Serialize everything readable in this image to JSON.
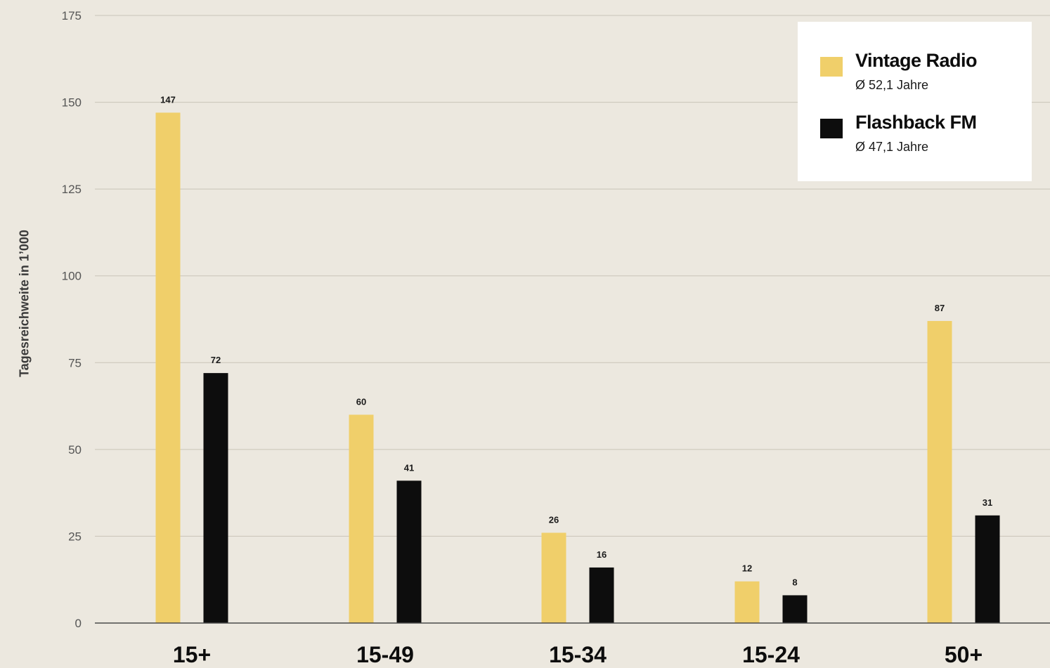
{
  "chart_data": {
    "type": "bar",
    "ylabel": "Tagesreichweite in 1’000",
    "ylim": [
      0,
      175
    ],
    "yticks": [
      0,
      25,
      50,
      75,
      100,
      125,
      150,
      175
    ],
    "grid": true,
    "legend_position": "top-right",
    "categories": [
      "15+",
      "15-49",
      "15-34",
      "15-24",
      "50+"
    ],
    "series": [
      {
        "name": "Vintage Radio",
        "subtitle": "Ø 52,1 Jahre",
        "color": "#f0cf6a",
        "values": [
          147,
          60,
          26,
          12,
          87
        ]
      },
      {
        "name": "Flashback FM",
        "subtitle": "Ø 47,1 Jahre",
        "color": "#0d0d0d",
        "values": [
          72,
          41,
          16,
          8,
          31
        ]
      }
    ]
  },
  "colors": {
    "background": "#ece8df",
    "grid": "#c9c4b8",
    "axis": "#4a4a4a",
    "tick_text": "#555555",
    "category_text": "#0d0d0d"
  }
}
